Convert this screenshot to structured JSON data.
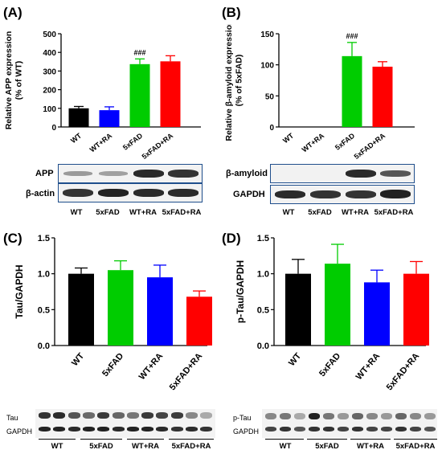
{
  "panels": [
    {
      "letter": "(A)"
    },
    {
      "letter": "(B)"
    },
    {
      "letter": "(C)"
    },
    {
      "letter": "(D)"
    }
  ],
  "chart_data": [
    {
      "type": "bar",
      "panel": "A",
      "categories": [
        "WT",
        "WT+RA",
        "5xFAD",
        "5xFAD+RA"
      ],
      "values": [
        100,
        90,
        337,
        352
      ],
      "errors": [
        10,
        18,
        28,
        30
      ],
      "colors": [
        "#000000",
        "#0000ff",
        "#00cc00",
        "#ff0000"
      ],
      "ylabel_lines": [
        "Relative APP expression",
        "(% of WT)"
      ],
      "ylim": [
        0,
        500
      ],
      "yticks": [
        "0",
        "100",
        "200",
        "300",
        "400",
        "500"
      ],
      "annotations": [
        {
          "category": "5xFAD",
          "text": "###"
        }
      ]
    },
    {
      "type": "bar",
      "panel": "B",
      "categories": [
        "WT",
        "WT+RA",
        "5xFAD",
        "5xFAD+RA"
      ],
      "values": [
        0,
        0,
        114,
        97
      ],
      "errors": [
        0,
        0,
        22,
        8
      ],
      "colors": [
        "#000000",
        "#0000ff",
        "#00cc00",
        "#ff0000"
      ],
      "ylabel_lines": [
        "Relative β-amyloid expression",
        "(% of 5xFAD)"
      ],
      "ylim": [
        0,
        150
      ],
      "yticks": [
        "0",
        "50",
        "100",
        "150"
      ],
      "annotations": [
        {
          "category": "5xFAD",
          "text": "###"
        }
      ]
    },
    {
      "type": "bar",
      "panel": "C",
      "categories": [
        "WT",
        "5xFAD",
        "WT+RA",
        "5xFAD+RA"
      ],
      "values": [
        1.0,
        1.05,
        0.95,
        0.68
      ],
      "errors": [
        0.08,
        0.13,
        0.17,
        0.08
      ],
      "colors": [
        "#000000",
        "#00cc00",
        "#0000ff",
        "#ff0000"
      ],
      "ylabel_lines": [
        "Tau/GAPDH"
      ],
      "ylim": [
        0,
        1.5
      ],
      "yticks": [
        "0.0",
        "0.5",
        "1.0",
        "1.5"
      ],
      "annotations": []
    },
    {
      "type": "bar",
      "panel": "D",
      "categories": [
        "WT",
        "5xFAD",
        "WT+RA",
        "5xFAD+RA"
      ],
      "values": [
        1.0,
        1.14,
        0.88,
        1.0
      ],
      "errors": [
        0.2,
        0.27,
        0.17,
        0.17
      ],
      "colors": [
        "#000000",
        "#00cc00",
        "#0000ff",
        "#ff0000"
      ],
      "ylabel_lines": [
        "p-Tau/GAPDH"
      ],
      "ylim": [
        0,
        1.5
      ],
      "yticks": [
        "0.0",
        "0.5",
        "1.0",
        "1.5"
      ],
      "annotations": []
    }
  ],
  "blots": {
    "A": {
      "rows": [
        "APP",
        "β-actin"
      ],
      "lanes": [
        "WT",
        "5xFAD",
        "WT+RA",
        "5xFAD+RA"
      ]
    },
    "B": {
      "rows": [
        "β-amyloid",
        "GAPDH"
      ],
      "lanes": [
        "WT",
        "5xFAD",
        "WT+RA",
        "5xFAD+RA"
      ]
    },
    "C": {
      "rows": [
        "Tau",
        "GAPDH"
      ],
      "lanes": [
        "WT",
        "5xFAD",
        "WT+RA",
        "5xFAD+RA"
      ]
    },
    "D": {
      "rows": [
        "p-Tau",
        "GAPDH"
      ],
      "lanes": [
        "WT",
        "5xFAD",
        "WT+RA",
        "5xFAD+RA"
      ]
    }
  }
}
